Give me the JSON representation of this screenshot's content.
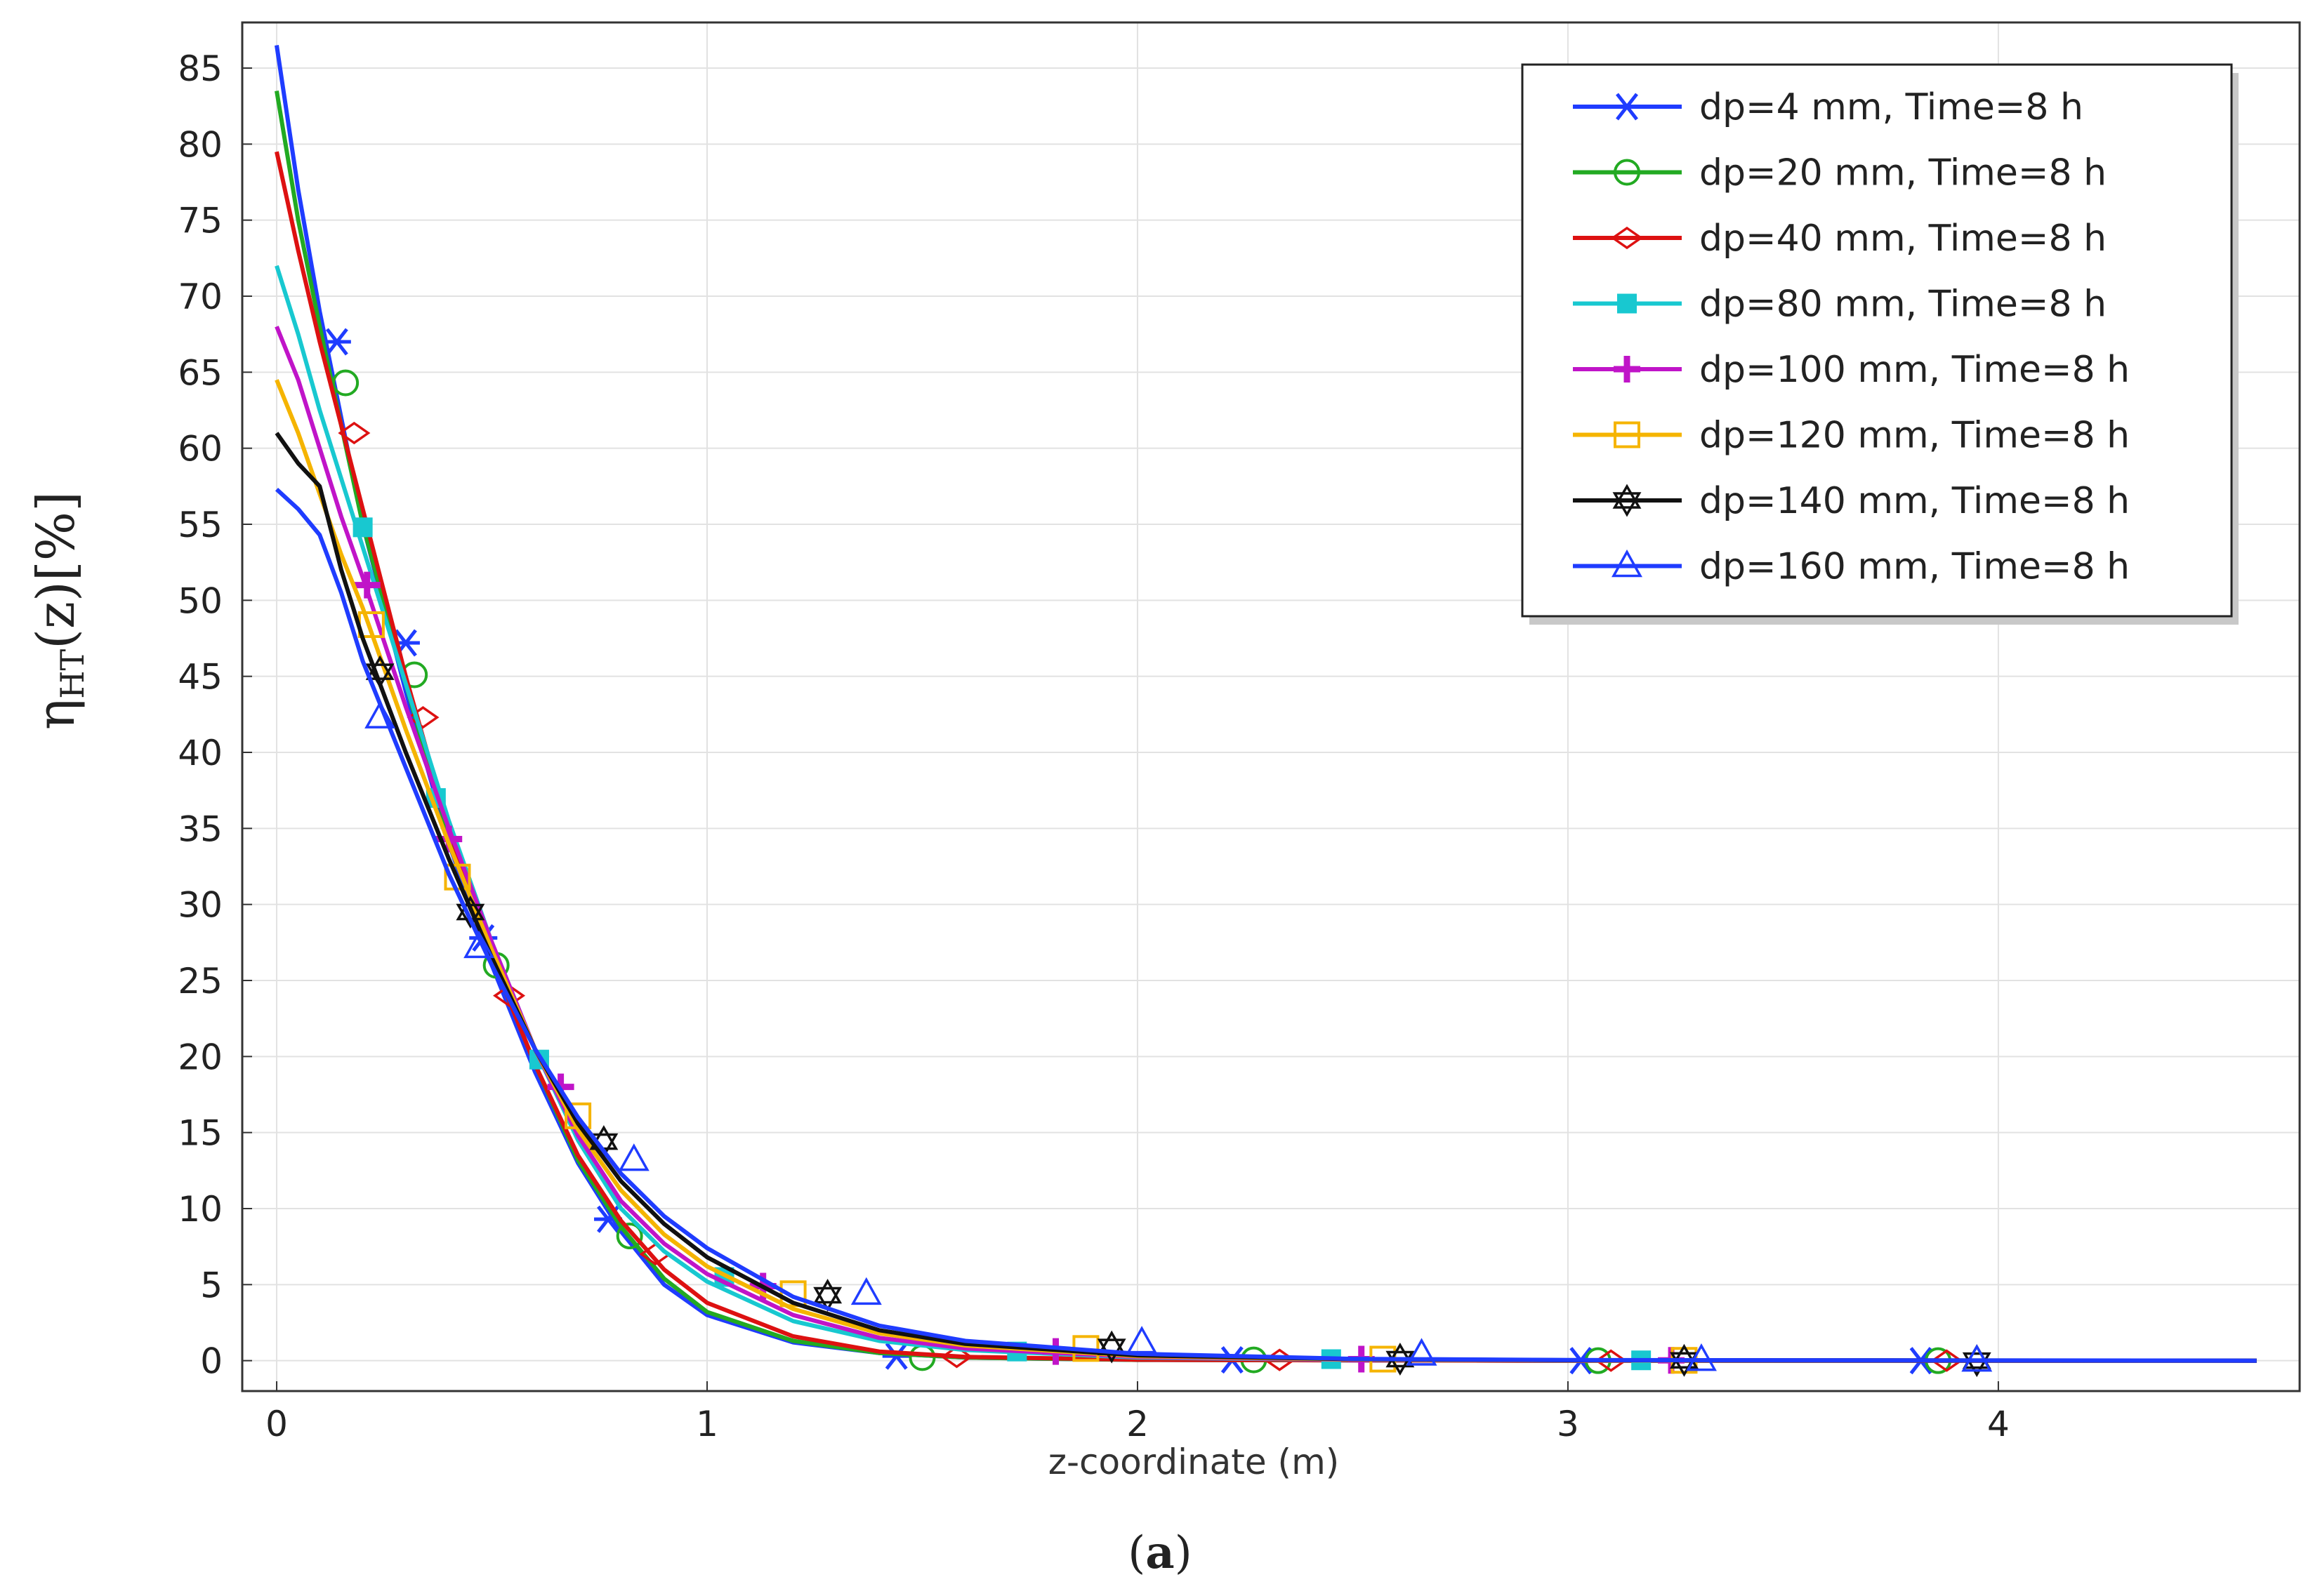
{
  "caption": {
    "open": "(",
    "letter": "a",
    "close": ")"
  },
  "chart_data": {
    "type": "line",
    "title": "",
    "xlabel": "z-coordinate (m)",
    "ylabel": {
      "main": "η",
      "sub": "HT",
      "rest": "(z)[%]"
    },
    "xlim": [
      -0.08,
      4.7
    ],
    "ylim": [
      -2,
      88
    ],
    "xticks": [
      0,
      1,
      2,
      3,
      4
    ],
    "yticks": [
      0,
      5,
      10,
      15,
      20,
      25,
      30,
      35,
      40,
      45,
      50,
      55,
      60,
      65,
      70,
      75,
      80,
      85
    ],
    "grid": true,
    "legend_position": "top-right",
    "series": [
      {
        "name": "dp=4 mm, Time=8 h",
        "color": "#1f3cff",
        "marker": "asterisk",
        "x": [
          0,
          0.05,
          0.1,
          0.15,
          0.2,
          0.3,
          0.4,
          0.5,
          0.6,
          0.7,
          0.8,
          0.9,
          1.0,
          1.2,
          1.4,
          1.6,
          2.0,
          2.5,
          3.0,
          4.6
        ],
        "y": [
          86.5,
          77,
          69,
          62,
          55,
          44,
          34,
          26,
          19,
          13,
          8.5,
          5,
          3,
          1.2,
          0.5,
          0.2,
          0.05,
          0.02,
          0,
          0
        ],
        "markers_x": [
          0.14,
          0.3,
          0.48,
          0.77,
          1.44,
          2.22,
          3.03,
          3.82
        ],
        "markers_y": [
          67,
          47.2,
          27.8,
          9.3,
          0.3,
          0.05,
          0,
          0
        ]
      },
      {
        "name": "dp=20 mm, Time=8 h",
        "color": "#22aa22",
        "marker": "circle",
        "x": [
          0,
          0.05,
          0.1,
          0.15,
          0.2,
          0.3,
          0.4,
          0.5,
          0.6,
          0.7,
          0.8,
          0.9,
          1.0,
          1.2,
          1.4,
          1.6,
          2.0,
          2.5,
          3.0,
          4.6
        ],
        "y": [
          83.5,
          75,
          68,
          61.5,
          55,
          44.5,
          34.5,
          26.5,
          19.5,
          13.2,
          8.8,
          5.4,
          3.2,
          1.3,
          0.5,
          0.2,
          0.05,
          0.02,
          0,
          0
        ],
        "markers_x": [
          0.16,
          0.32,
          0.51,
          0.82,
          1.5,
          2.27,
          3.07,
          3.86
        ],
        "markers_y": [
          64.3,
          45.1,
          26,
          8.2,
          0.2,
          0.05,
          0,
          0
        ]
      },
      {
        "name": "dp=40 mm, Time=8 h",
        "color": "#dd1111",
        "marker": "diamond",
        "x": [
          0,
          0.05,
          0.1,
          0.15,
          0.2,
          0.3,
          0.4,
          0.5,
          0.6,
          0.7,
          0.8,
          0.9,
          1.0,
          1.2,
          1.4,
          1.6,
          2.0,
          2.5,
          3.0,
          4.6
        ],
        "y": [
          79.5,
          73,
          67,
          61.5,
          56,
          45,
          35,
          26.5,
          19.5,
          13.5,
          9.2,
          6,
          3.8,
          1.6,
          0.6,
          0.25,
          0.06,
          0.02,
          0,
          0
        ],
        "markers_x": [
          0.18,
          0.34,
          0.54,
          0.88,
          1.58,
          2.33,
          3.1,
          3.88
        ],
        "markers_y": [
          61,
          42.3,
          24,
          7,
          0.25,
          0.05,
          0,
          0
        ]
      },
      {
        "name": "dp=80 mm, Time=8 h",
        "color": "#18c8d0",
        "marker": "square-filled",
        "x": [
          0,
          0.05,
          0.1,
          0.15,
          0.2,
          0.3,
          0.4,
          0.5,
          0.6,
          0.7,
          0.8,
          0.9,
          1.0,
          1.2,
          1.4,
          1.6,
          2.0,
          2.5,
          3.0,
          4.6
        ],
        "y": [
          72,
          67.5,
          62.5,
          58,
          53.5,
          44.5,
          35.5,
          27.5,
          20.5,
          14.5,
          10,
          7.2,
          5.2,
          2.6,
          1.3,
          0.7,
          0.2,
          0.05,
          0.02,
          0
        ],
        "markers_x": [
          0.2,
          0.37,
          0.61,
          1.04,
          1.72,
          2.45,
          3.17
        ],
        "markers_y": [
          54.8,
          37,
          19.8,
          5.5,
          0.6,
          0.1,
          0.02
        ]
      },
      {
        "name": "dp=100 mm, Time=8 h",
        "color": "#c014c8",
        "marker": "plus",
        "x": [
          0,
          0.05,
          0.1,
          0.15,
          0.2,
          0.3,
          0.4,
          0.5,
          0.6,
          0.7,
          0.8,
          0.9,
          1.0,
          1.2,
          1.4,
          1.6,
          2.0,
          2.5,
          3.0,
          4.6
        ],
        "y": [
          68,
          64.5,
          60,
          55.5,
          51.5,
          43,
          35,
          27.5,
          20.5,
          14.8,
          10.5,
          7.7,
          5.7,
          3,
          1.5,
          0.8,
          0.25,
          0.06,
          0.02,
          0
        ],
        "markers_x": [
          0.21,
          0.4,
          0.66,
          1.13,
          1.81,
          2.52,
          3.24
        ],
        "markers_y": [
          51,
          34.3,
          18,
          4.9,
          0.6,
          0.1,
          0.02
        ]
      },
      {
        "name": "dp=120 mm, Time=8 h",
        "color": "#f5b400",
        "marker": "square",
        "x": [
          0,
          0.05,
          0.1,
          0.15,
          0.2,
          0.3,
          0.4,
          0.5,
          0.6,
          0.7,
          0.8,
          0.9,
          1.0,
          1.2,
          1.4,
          1.6,
          2.0,
          2.5,
          3.0,
          4.6
        ],
        "y": [
          64.5,
          61,
          57,
          53,
          49.5,
          41.5,
          34,
          27,
          20.5,
          15.2,
          11.2,
          8.3,
          6.2,
          3.4,
          1.8,
          1,
          0.3,
          0.08,
          0.02,
          0
        ],
        "markers_x": [
          0.22,
          0.42,
          0.7,
          1.2,
          1.88,
          2.57,
          3.27
        ],
        "markers_y": [
          48.4,
          31.8,
          16.1,
          4.4,
          0.8,
          0.1,
          0.02
        ]
      },
      {
        "name": "dp=140 mm, Time=8 h",
        "color": "#111111",
        "marker": "star",
        "x": [
          0,
          0.05,
          0.1,
          0.15,
          0.2,
          0.3,
          0.4,
          0.5,
          0.6,
          0.7,
          0.8,
          0.9,
          1.0,
          1.2,
          1.4,
          1.6,
          2.0,
          2.5,
          3.0,
          4.6
        ],
        "y": [
          61,
          59,
          57.5,
          52,
          47.5,
          40,
          33,
          26.5,
          20.5,
          15.6,
          11.8,
          9,
          6.8,
          3.8,
          2,
          1.1,
          0.35,
          0.1,
          0.03,
          0
        ],
        "markers_x": [
          0.24,
          0.45,
          0.76,
          1.28,
          1.94,
          2.61,
          3.27,
          3.95
        ],
        "markers_y": [
          45.3,
          29.5,
          14.4,
          4.3,
          0.9,
          0.1,
          0.02,
          0
        ]
      },
      {
        "name": "dp=160 mm, Time=8 h",
        "color": "#1f3cff",
        "marker": "triangle",
        "x": [
          0,
          0.05,
          0.1,
          0.15,
          0.2,
          0.3,
          0.4,
          0.5,
          0.6,
          0.7,
          0.8,
          0.9,
          1.0,
          1.2,
          1.4,
          1.6,
          2.0,
          2.5,
          3.0,
          4.6
        ],
        "y": [
          57.3,
          56,
          54.3,
          50.5,
          46,
          39,
          32,
          26,
          20.5,
          16,
          12.3,
          9.5,
          7.4,
          4.2,
          2.3,
          1.3,
          0.45,
          0.12,
          0.04,
          0
        ],
        "markers_x": [
          0.24,
          0.47,
          0.83,
          1.37,
          2.01,
          2.66,
          3.31,
          3.95
        ],
        "markers_y": [
          42.3,
          27.2,
          13.2,
          4.4,
          1.2,
          0.4,
          0.05,
          0
        ]
      }
    ]
  }
}
